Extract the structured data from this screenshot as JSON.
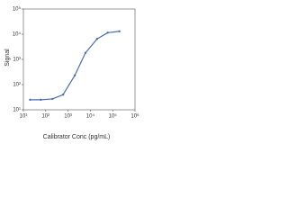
{
  "chart_data": {
    "type": "line",
    "x_label": "Calibrator Conc (pg/mL)",
    "y_label": "Signal",
    "log_x": true,
    "log_y": true,
    "x": [
      20,
      60,
      200,
      600,
      2000,
      6000,
      20000,
      60000,
      200000
    ],
    "series": [
      {
        "color": "#4a6db3",
        "values": [
          25,
          25,
          27,
          40,
          230,
          1800,
          6500,
          11500,
          13000
        ]
      }
    ],
    "xlim": [
      10,
      1000000
    ],
    "xticks": [
      {
        "value": 10,
        "label": "10¹"
      },
      {
        "value": 100,
        "label": "10²"
      },
      {
        "value": 1000,
        "label": "10³"
      },
      {
        "value": 10000,
        "label": "10⁴"
      },
      {
        "value": 100000,
        "label": "10⁵"
      },
      {
        "value": 1000000,
        "label": "10⁶"
      }
    ],
    "ylim": [
      10,
      100000
    ],
    "yticks": [
      {
        "value": 10,
        "label": "10¹"
      },
      {
        "value": 100,
        "label": "10²"
      },
      {
        "value": 1000,
        "label": "10³"
      },
      {
        "value": 10000,
        "label": "10⁴"
      },
      {
        "value": 100000,
        "label": "10⁵"
      }
    ]
  }
}
